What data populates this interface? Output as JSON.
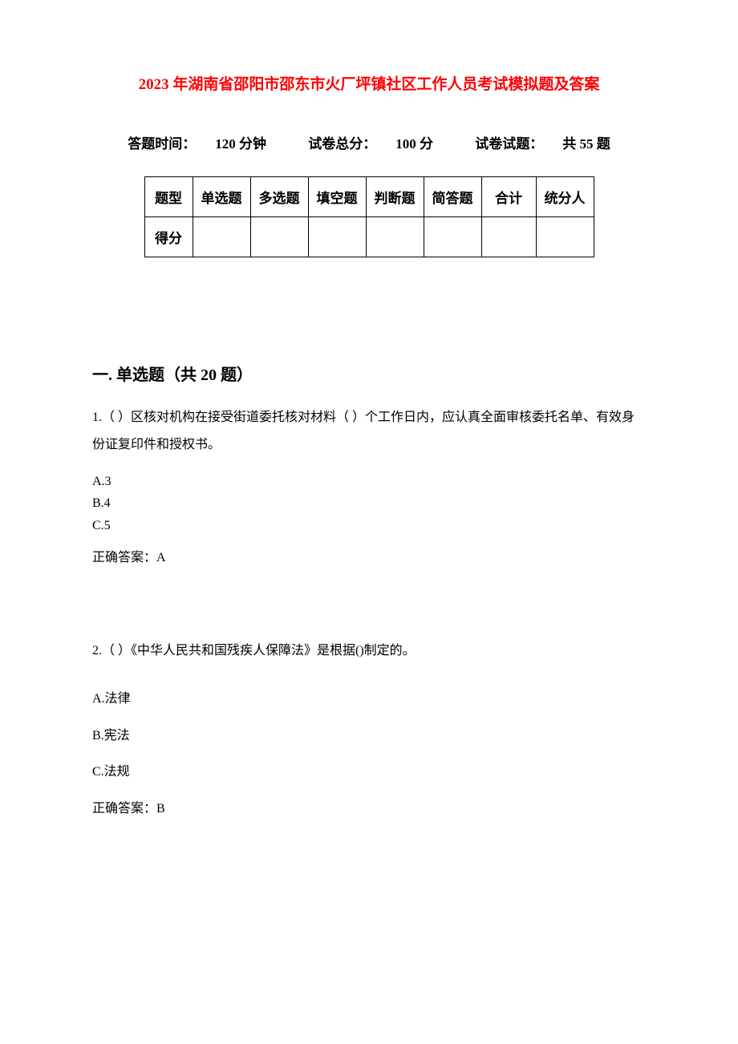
{
  "title": {
    "year": "2023",
    "rest": " 年湖南省邵阳市邵东市火厂坪镇社区工作人员考试模拟题及答案",
    "fontsize": 19,
    "color": "#ff0000"
  },
  "subtitle": {
    "time_label": "答题时间：",
    "time_value": "120 分钟",
    "total_label": "试卷总分：",
    "total_value": "100 分",
    "count_label": "试卷试题：",
    "count_value": "共 55 题",
    "fontsize": 17,
    "color": "#000000"
  },
  "table": {
    "border_color": "#000000",
    "background_color": "#ffffff",
    "fontsize": 17,
    "columns": [
      "题型",
      "单选题",
      "多选题",
      "填空题",
      "判断题",
      "简答题",
      "合计",
      "统分人"
    ],
    "rows": [
      [
        "得分",
        "",
        "",
        "",
        "",
        "",
        "",
        ""
      ]
    ]
  },
  "section": {
    "title": "一. 单选题（共 20 题）",
    "fontsize": 20
  },
  "questions": [
    {
      "number": "1.",
      "text": "（ ）区核对机构在接受街道委托核对材料（ ）个工作日内，应认真全面审核委托名单、有效身份证复印件和授权书。",
      "options": [
        "A.3",
        "B.4",
        "C.5"
      ],
      "answer_label": "正确答案：",
      "answer": "A",
      "option_style": "compact"
    },
    {
      "number": "2.",
      "text": "（ ）《中华人民共和国残疾人保障法》是根据()制定的。",
      "options": [
        "A.法律",
        "B.宪法",
        "C.法规"
      ],
      "answer_label": "正确答案：",
      "answer": "B",
      "option_style": "spaced"
    }
  ],
  "body_fontsize": 16,
  "body_color": "#000000",
  "background_color": "#ffffff"
}
